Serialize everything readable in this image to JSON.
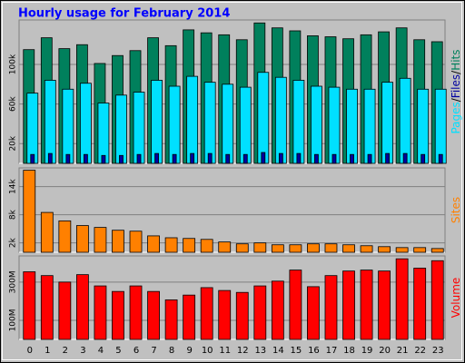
{
  "chart_data": [
    {
      "type": "bar",
      "title": "Hourly usage for February 2014",
      "legend_separator": "/",
      "series": [
        {
          "name": "Hits",
          "color": "#00805c",
          "values": [
            115000,
            127000,
            116000,
            120000,
            101000,
            109000,
            114000,
            127000,
            119000,
            135000,
            132000,
            130000,
            125000,
            142000,
            137000,
            134000,
            129000,
            128000,
            126000,
            130000,
            133000,
            137000,
            125000,
            123000
          ]
        },
        {
          "name": "Pages",
          "color": "#00e0ff",
          "values": [
            71000,
            84000,
            75000,
            81000,
            61000,
            69000,
            72000,
            84000,
            78000,
            88000,
            82000,
            80000,
            77000,
            92000,
            87000,
            84000,
            78000,
            77000,
            75000,
            75000,
            82000,
            86000,
            75000,
            75000
          ]
        },
        {
          "name": "Files",
          "color": "#0000a0",
          "values": [
            9000,
            10000,
            9000,
            9000,
            8000,
            8000,
            9000,
            10000,
            9000,
            10000,
            10000,
            9000,
            9000,
            11000,
            10000,
            10000,
            9000,
            9000,
            9000,
            9000,
            10000,
            10000,
            9000,
            9000
          ]
        }
      ],
      "legend_order": [
        "Pages",
        "Files",
        "Hits"
      ],
      "ylim": [
        0,
        145000
      ],
      "yticks": [
        {
          "value": 20000,
          "label": "20k"
        },
        {
          "value": 60000,
          "label": "60k"
        },
        {
          "value": 100000,
          "label": "100k"
        }
      ]
    },
    {
      "type": "bar",
      "series": [
        {
          "name": "Sites",
          "color": "#ff8000",
          "values": [
            17500,
            8500,
            6700,
            5700,
            5300,
            4700,
            4500,
            3500,
            3100,
            2950,
            2750,
            2200,
            1800,
            2000,
            1600,
            1600,
            1800,
            1800,
            1600,
            1400,
            1200,
            1000,
            1000,
            800
          ]
        }
      ],
      "ylim": [
        0,
        18000
      ],
      "yticks": [
        {
          "value": 2000,
          "label": "2k"
        },
        {
          "value": 8000,
          "label": "8k"
        },
        {
          "value": 14000,
          "label": "14k"
        }
      ]
    },
    {
      "type": "bar",
      "categories": [
        "0",
        "1",
        "2",
        "3",
        "4",
        "5",
        "6",
        "7",
        "8",
        "9",
        "10",
        "11",
        "12",
        "13",
        "14",
        "15",
        "16",
        "17",
        "18",
        "19",
        "20",
        "21",
        "22",
        "23"
      ],
      "series": [
        {
          "name": "Volume",
          "color": "#ff0000",
          "values": [
            354,
            334,
            300,
            339,
            280,
            251,
            280,
            251,
            207,
            232,
            271,
            256,
            246,
            280,
            305,
            363,
            276,
            334,
            358,
            363,
            358,
            422,
            373,
            412
          ]
        }
      ],
      "ylim": [
        0,
        437
      ],
      "yticks": [
        {
          "value": 100,
          "label": "100M"
        },
        {
          "value": 300,
          "label": "300M"
        }
      ]
    }
  ]
}
